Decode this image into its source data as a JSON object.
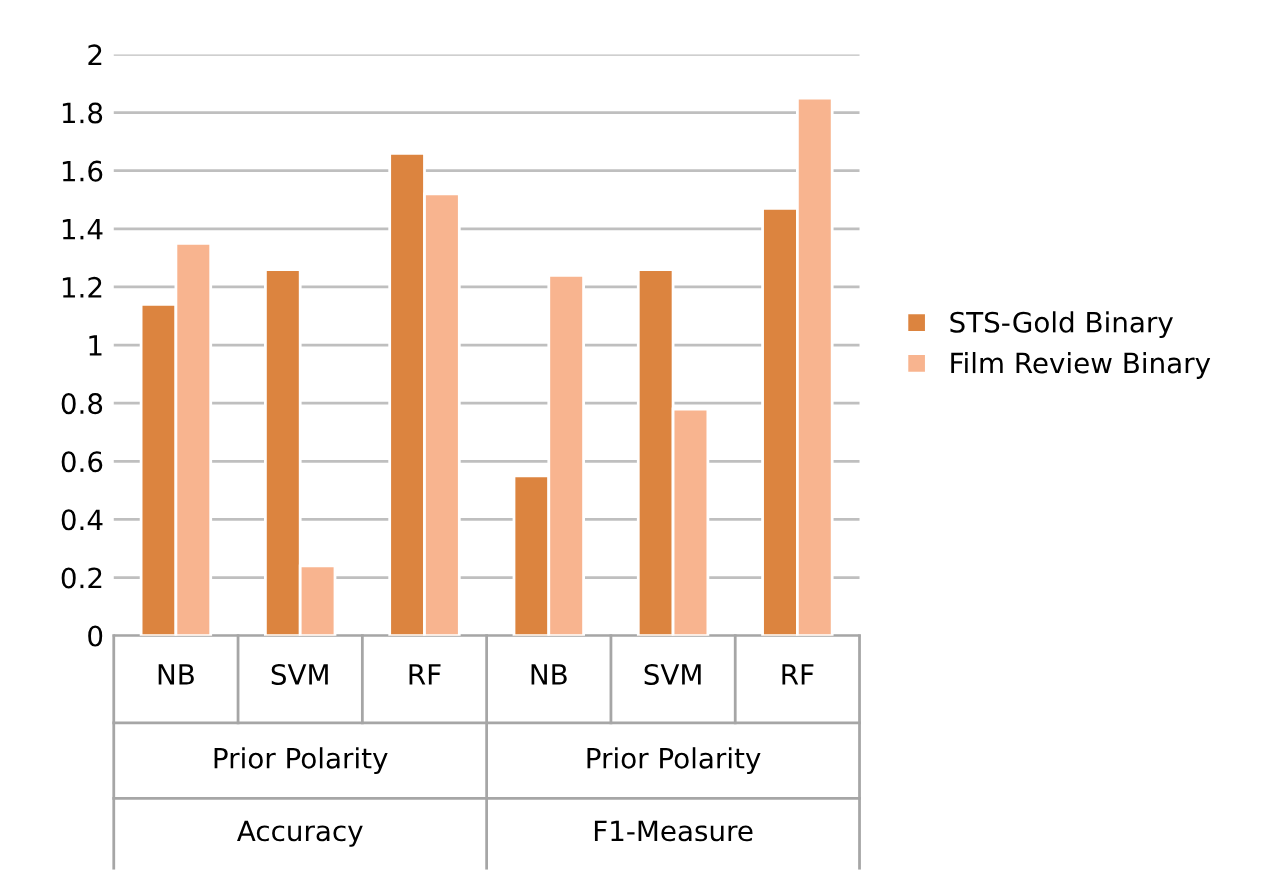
{
  "chart_data": {
    "type": "bar",
    "categories": [
      "NB",
      "SVM",
      "RF",
      "NB",
      "SVM",
      "RF"
    ],
    "series": [
      {
        "name": "STS-Gold Binary",
        "color": "#dc843f",
        "values": [
          1.14,
          1.26,
          1.66,
          0.55,
          1.26,
          1.47
        ]
      },
      {
        "name": "Film Review Binary",
        "color": "#f8b48f",
        "values": [
          1.35,
          0.24,
          1.52,
          1.24,
          0.78,
          1.85
        ]
      }
    ],
    "annotations": [
      "Prior Polarity",
      "Prior Polarity",
      "Accuracy",
      "F1-Measure"
    ],
    "ylim": [
      0,
      2
    ],
    "yticks": [
      0,
      0.2,
      0.4,
      0.6,
      0.8,
      1,
      1.2,
      1.4,
      1.6,
      1.8,
      2
    ],
    "grid": "y",
    "legend": "right"
  }
}
